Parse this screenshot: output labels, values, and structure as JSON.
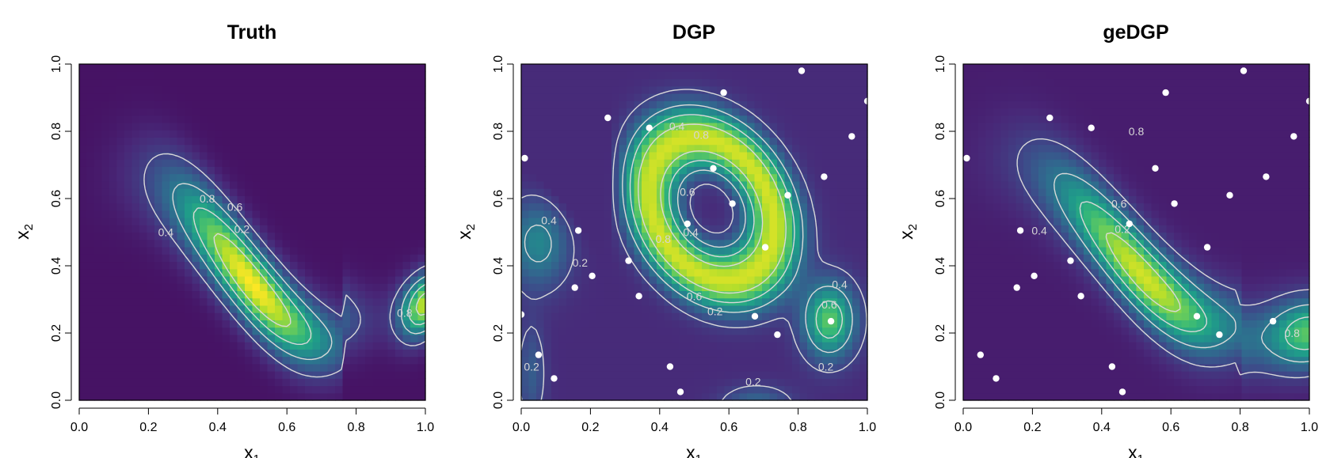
{
  "chart_data": [
    {
      "type": "heatmap",
      "title": "Truth",
      "xlabel": "x",
      "xlabel_sub": "1",
      "ylabel": "x",
      "ylabel_sub": "2",
      "xlim": [
        0,
        1
      ],
      "ylim": [
        0,
        1
      ],
      "xticks": [
        "0.0",
        "0.2",
        "0.4",
        "0.6",
        "0.8",
        "1.0"
      ],
      "yticks": [
        "0.0",
        "0.2",
        "0.4",
        "0.6",
        "0.8",
        "1.0"
      ],
      "colormap": "viridis",
      "contour_levels": [
        0.2,
        0.4,
        0.6,
        0.8
      ],
      "contour_labels": [
        {
          "text": "0.8",
          "x": 0.37,
          "y": 0.6
        },
        {
          "text": "0.6",
          "x": 0.45,
          "y": 0.575
        },
        {
          "text": "0.4",
          "x": 0.25,
          "y": 0.5
        },
        {
          "text": "0.2",
          "x": 0.47,
          "y": 0.51
        },
        {
          "text": "0.8",
          "x": 0.94,
          "y": 0.26
        }
      ],
      "points": []
    },
    {
      "type": "heatmap",
      "title": "DGP",
      "xlabel": "x",
      "xlabel_sub": "1",
      "ylabel": "x",
      "ylabel_sub": "2",
      "xlim": [
        0,
        1
      ],
      "ylim": [
        0,
        1
      ],
      "xticks": [
        "0.0",
        "0.2",
        "0.4",
        "0.6",
        "0.8",
        "1.0"
      ],
      "yticks": [
        "0.0",
        "0.2",
        "0.4",
        "0.6",
        "0.8",
        "1.0"
      ],
      "colormap": "viridis",
      "contour_levels": [
        0.2,
        0.4,
        0.6,
        0.8
      ],
      "contour_labels": [
        {
          "text": "0.4",
          "x": 0.45,
          "y": 0.815
        },
        {
          "text": "0.8",
          "x": 0.52,
          "y": 0.79
        },
        {
          "text": "0.6",
          "x": 0.48,
          "y": 0.62
        },
        {
          "text": "0.8",
          "x": 0.41,
          "y": 0.48
        },
        {
          "text": "0.4",
          "x": 0.49,
          "y": 0.5
        },
        {
          "text": "0.6",
          "x": 0.5,
          "y": 0.31
        },
        {
          "text": "0.2",
          "x": 0.56,
          "y": 0.265
        },
        {
          "text": "0.4",
          "x": 0.08,
          "y": 0.535
        },
        {
          "text": "0.2",
          "x": 0.17,
          "y": 0.41
        },
        {
          "text": "0.2",
          "x": 0.03,
          "y": 0.1
        },
        {
          "text": "0.4",
          "x": 0.92,
          "y": 0.345
        },
        {
          "text": "0.6",
          "x": 0.89,
          "y": 0.285
        },
        {
          "text": "0.2",
          "x": 0.88,
          "y": 0.1
        },
        {
          "text": "0.2",
          "x": 0.67,
          "y": 0.055
        }
      ],
      "points": [
        [
          0.81,
          0.98
        ],
        [
          0.585,
          0.915
        ],
        [
          1.0,
          0.89
        ],
        [
          0.25,
          0.84
        ],
        [
          0.37,
          0.81
        ],
        [
          0.955,
          0.785
        ],
        [
          0.01,
          0.72
        ],
        [
          0.555,
          0.69
        ],
        [
          0.875,
          0.665
        ],
        [
          0.77,
          0.61
        ],
        [
          0.61,
          0.585
        ],
        [
          0.48,
          0.525
        ],
        [
          0.165,
          0.505
        ],
        [
          0.705,
          0.455
        ],
        [
          0.31,
          0.415
        ],
        [
          0.205,
          0.37
        ],
        [
          0.155,
          0.335
        ],
        [
          0.34,
          0.31
        ],
        [
          0.0,
          0.255
        ],
        [
          0.675,
          0.25
        ],
        [
          0.895,
          0.235
        ],
        [
          0.74,
          0.195
        ],
        [
          0.43,
          0.1
        ],
        [
          0.05,
          0.135
        ],
        [
          0.095,
          0.065
        ],
        [
          0.46,
          0.025
        ]
      ]
    },
    {
      "type": "heatmap",
      "title": "geDGP",
      "xlabel": "x",
      "xlabel_sub": "1",
      "ylabel": "x",
      "ylabel_sub": "2",
      "xlim": [
        0,
        1
      ],
      "ylim": [
        0,
        1
      ],
      "xticks": [
        "0.0",
        "0.2",
        "0.4",
        "0.6",
        "0.8",
        "1.0"
      ],
      "yticks": [
        "0.0",
        "0.2",
        "0.4",
        "0.6",
        "0.8",
        "1.0"
      ],
      "colormap": "viridis",
      "contour_levels": [
        0.2,
        0.4,
        0.6,
        0.8
      ],
      "contour_labels": [
        {
          "text": "0.8",
          "x": 0.5,
          "y": 0.8
        },
        {
          "text": "0.6",
          "x": 0.45,
          "y": 0.585
        },
        {
          "text": "0.4",
          "x": 0.22,
          "y": 0.505
        },
        {
          "text": "0.2",
          "x": 0.46,
          "y": 0.51
        },
        {
          "text": "0.8",
          "x": 0.95,
          "y": 0.2
        }
      ],
      "points": [
        [
          0.81,
          0.98
        ],
        [
          0.585,
          0.915
        ],
        [
          1.0,
          0.89
        ],
        [
          0.25,
          0.84
        ],
        [
          0.37,
          0.81
        ],
        [
          0.955,
          0.785
        ],
        [
          0.01,
          0.72
        ],
        [
          0.555,
          0.69
        ],
        [
          0.875,
          0.665
        ],
        [
          0.77,
          0.61
        ],
        [
          0.61,
          0.585
        ],
        [
          0.48,
          0.525
        ],
        [
          0.165,
          0.505
        ],
        [
          0.705,
          0.455
        ],
        [
          0.31,
          0.415
        ],
        [
          0.205,
          0.37
        ],
        [
          0.155,
          0.335
        ],
        [
          0.34,
          0.31
        ],
        [
          0.675,
          0.25
        ],
        [
          0.895,
          0.235
        ],
        [
          0.74,
          0.195
        ],
        [
          0.43,
          0.1
        ],
        [
          0.05,
          0.135
        ],
        [
          0.095,
          0.065
        ],
        [
          0.46,
          0.025
        ]
      ]
    }
  ]
}
